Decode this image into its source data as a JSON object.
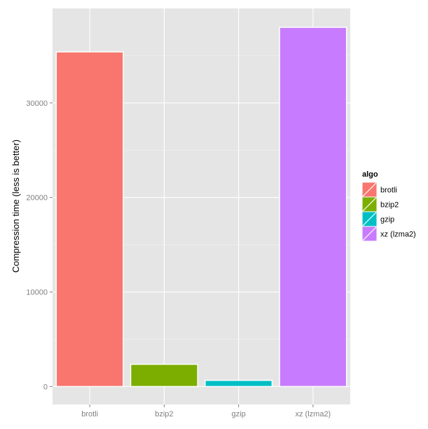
{
  "chart_data": {
    "type": "bar",
    "categories": [
      "brotli",
      "bzip2",
      "gzip",
      "xz (lzma2)"
    ],
    "values": [
      35400,
      2350,
      650,
      38000
    ],
    "colors": [
      "#F8766D",
      "#7CAE00",
      "#00BFC4",
      "#C77CFF"
    ],
    "xlabel": "",
    "ylabel": "Compression time (less is better)",
    "ylim": [
      -1900,
      40000
    ],
    "yticks": [
      0,
      10000,
      20000,
      30000
    ],
    "ytick_labels": [
      "0",
      "10000",
      "20000",
      "30000"
    ],
    "grid": true,
    "legend": {
      "title": "algo",
      "placement": "right",
      "entries": [
        "brotli",
        "bzip2",
        "gzip",
        "xz (lzma2)"
      ]
    }
  }
}
